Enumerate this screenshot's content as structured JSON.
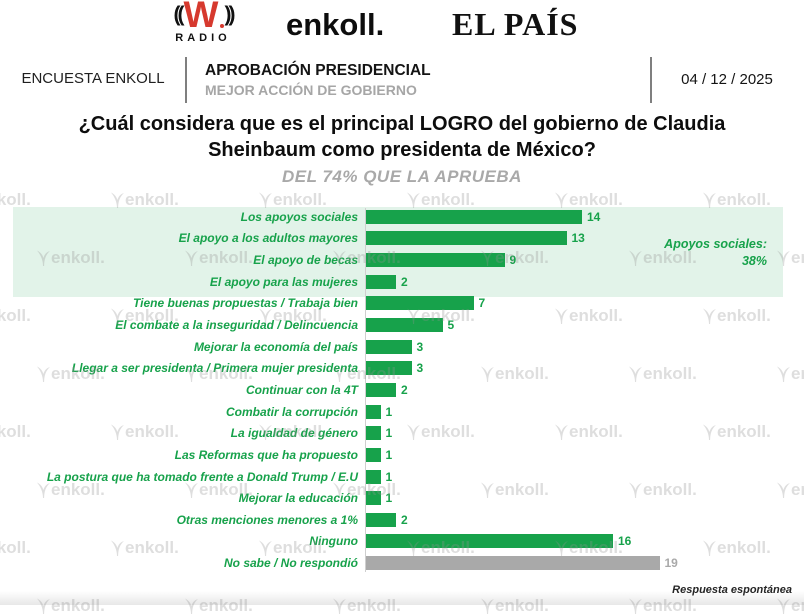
{
  "logos": {
    "wradio": {
      "left_arcs": "((",
      "w": "W",
      "right_arcs": "))",
      "radio": "RADIO"
    },
    "enkoll": "enkoll.",
    "elpais": "EL PAÍS"
  },
  "header": {
    "left_label": "ENCUESTA ENKOLL",
    "title": "APROBACIÓN PRESIDENCIAL",
    "subtitle": "MEJOR ACCIÓN DE GOBIERNO",
    "date": "04 / 12 / 2025"
  },
  "question": {
    "text": "¿Cuál considera que es el principal LOGRO del gobierno de Claudia Sheinbaum como presidenta de México?",
    "subtitle": "DEL 74% QUE LA APRUEBA"
  },
  "annotation": {
    "line1": "Apoyos sociales:",
    "line2": "38%"
  },
  "footnote": "Respuesta espontánea",
  "watermark_text": "enkoll.",
  "colors": {
    "bar_green": "#17a24b",
    "bar_gray": "#a9a9a9",
    "highlight_bg": "#e2f3e9",
    "logo_red": "#d6392e",
    "header_gray": "#a6a6a6"
  },
  "chart_data": {
    "type": "bar",
    "orientation": "horizontal",
    "title": "¿Cuál considera que es el principal LOGRO del gobierno de Claudia Sheinbaum como presidenta de México?",
    "subtitle": "DEL 74% QUE LA APRUEBA",
    "categories": [
      "Los apoyos sociales",
      "El apoyo a los adultos mayores",
      "El apoyo de becas",
      "El apoyo para las mujeres",
      "Tiene buenas propuestas / Trabaja bien",
      "El combate a la inseguridad / Delincuencia",
      "Mejorar la economía del país",
      "Llegar a ser presidenta / Primera mujer presidenta",
      "Continuar con la 4T",
      "Combatir la corrupción",
      "La igualdad de género",
      "Las Reformas que ha propuesto",
      "La postura que ha tomado frente a Donald Trump / E.U",
      "Mejorar la educación",
      "Otras menciones menores a 1%",
      "Ninguno",
      "No sabe / No respondió"
    ],
    "values": [
      14,
      13,
      9,
      2,
      7,
      5,
      3,
      3,
      2,
      1,
      1,
      1,
      1,
      1,
      2,
      16,
      19
    ],
    "gray_rows": [
      16
    ],
    "highlight_group": {
      "rows": [
        0,
        1,
        2,
        3
      ],
      "label": "Apoyos sociales:",
      "value": "38%"
    },
    "xlim": [
      0,
      19
    ],
    "grid": false,
    "legend": false,
    "note": "Respuesta espontánea"
  }
}
